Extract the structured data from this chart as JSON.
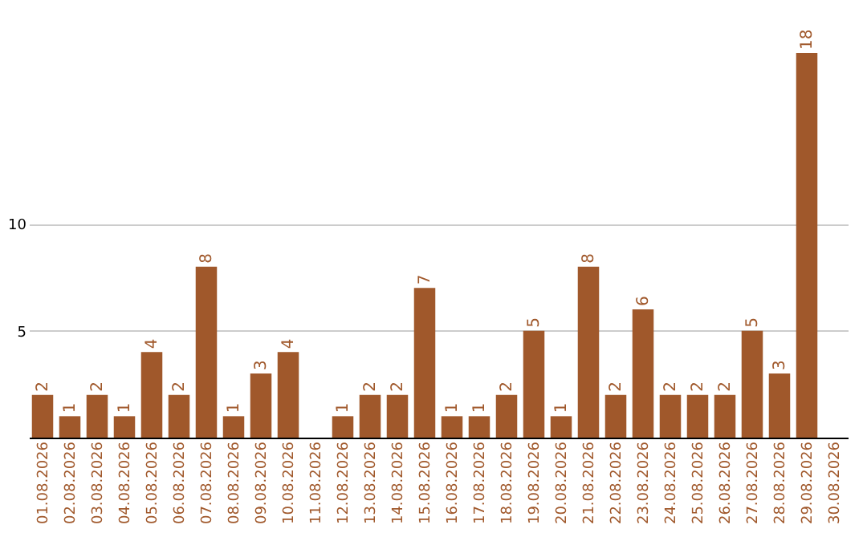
{
  "chart_data": {
    "type": "bar",
    "categories": [
      "01.08.2026",
      "02.08.2026",
      "03.08.2026",
      "04.08.2026",
      "05.08.2026",
      "06.08.2026",
      "07.08.2026",
      "08.08.2026",
      "09.08.2026",
      "10.08.2026",
      "11.08.2026",
      "12.08.2026",
      "13.08.2026",
      "14.08.2026",
      "15.08.2026",
      "16.08.2026",
      "17.08.2026",
      "18.08.2026",
      "19.08.2026",
      "20.08.2026",
      "21.08.2026",
      "22.08.2026",
      "23.08.2026",
      "24.08.2026",
      "25.08.2026",
      "26.08.2026",
      "27.08.2026",
      "28.08.2026",
      "29.08.2026",
      "30.08.2026"
    ],
    "values": [
      2,
      1,
      2,
      1,
      4,
      2,
      8,
      1,
      3,
      4,
      null,
      1,
      2,
      2,
      7,
      1,
      1,
      2,
      5,
      1,
      8,
      2,
      6,
      2,
      2,
      2,
      5,
      3,
      18,
      null
    ],
    "color": "#a0582b",
    "ylim": [
      0,
      18
    ],
    "yticks": [
      5,
      10
    ],
    "grid": "y",
    "data_labels": true
  }
}
